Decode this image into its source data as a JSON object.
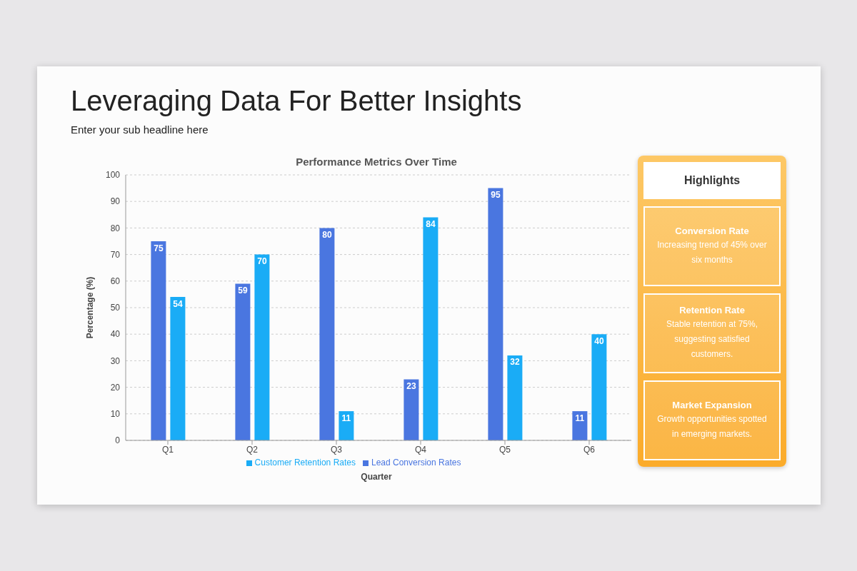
{
  "chart_data": [
    {
      "type": "bar",
      "title": "Performance Metrics Over Time",
      "annotations": [
        "Leveraging Data For Better Insights",
        "Enter your sub headline here"
      ],
      "xlabel": "Quarter",
      "ylabel": "Percentage (%)",
      "categories": [
        "Q1",
        "Q2",
        "Q3",
        "Q4",
        "Q5",
        "Q6"
      ],
      "series": [
        {
          "name": "Lead Conversion Rates",
          "color": "#4a76e0",
          "values": [
            75,
            59,
            80,
            23,
            95,
            11
          ]
        },
        {
          "name": "Customer Retention Rates",
          "color": "#1aacf6",
          "values": [
            54,
            70,
            11,
            84,
            32,
            40
          ]
        }
      ],
      "ylim": [
        0,
        100
      ],
      "yticks": [
        0,
        10,
        20,
        30,
        40,
        50,
        60,
        70,
        80,
        90,
        100
      ],
      "grid": "y",
      "legend": "bottom",
      "data_labels": true
    },
    {
      "type": "other",
      "title": "Highlights",
      "annotations": [
        "Conversion Rate",
        "Increasing trend of 45% over six months",
        "Retention Rate",
        "Stable retention at 75%, suggesting satisfied customers.",
        "Market Expansion",
        "Growth opportunities spotted in emerging markets."
      ]
    }
  ]
}
